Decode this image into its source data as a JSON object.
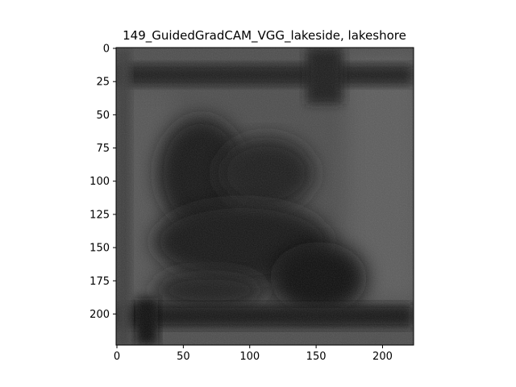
{
  "figure": {
    "title": "149_GuidedGradCAM_VGG_lakeside, lakeshore"
  },
  "image": {
    "description_class": "guided-gradcam-saliency-map",
    "colormap": "grayscale",
    "xlim": [
      0,
      224
    ],
    "ylim": [
      224,
      0
    ],
    "x_ticks": [
      "0",
      "50",
      "100",
      "150",
      "200"
    ],
    "y_ticks": [
      "0",
      "25",
      "50",
      "75",
      "100",
      "125",
      "150",
      "175",
      "200"
    ]
  },
  "colors": {
    "background": "#ffffff",
    "image_base": "#4a4a4a",
    "image_dark": "#0a0a0a",
    "axis": "#000000"
  }
}
